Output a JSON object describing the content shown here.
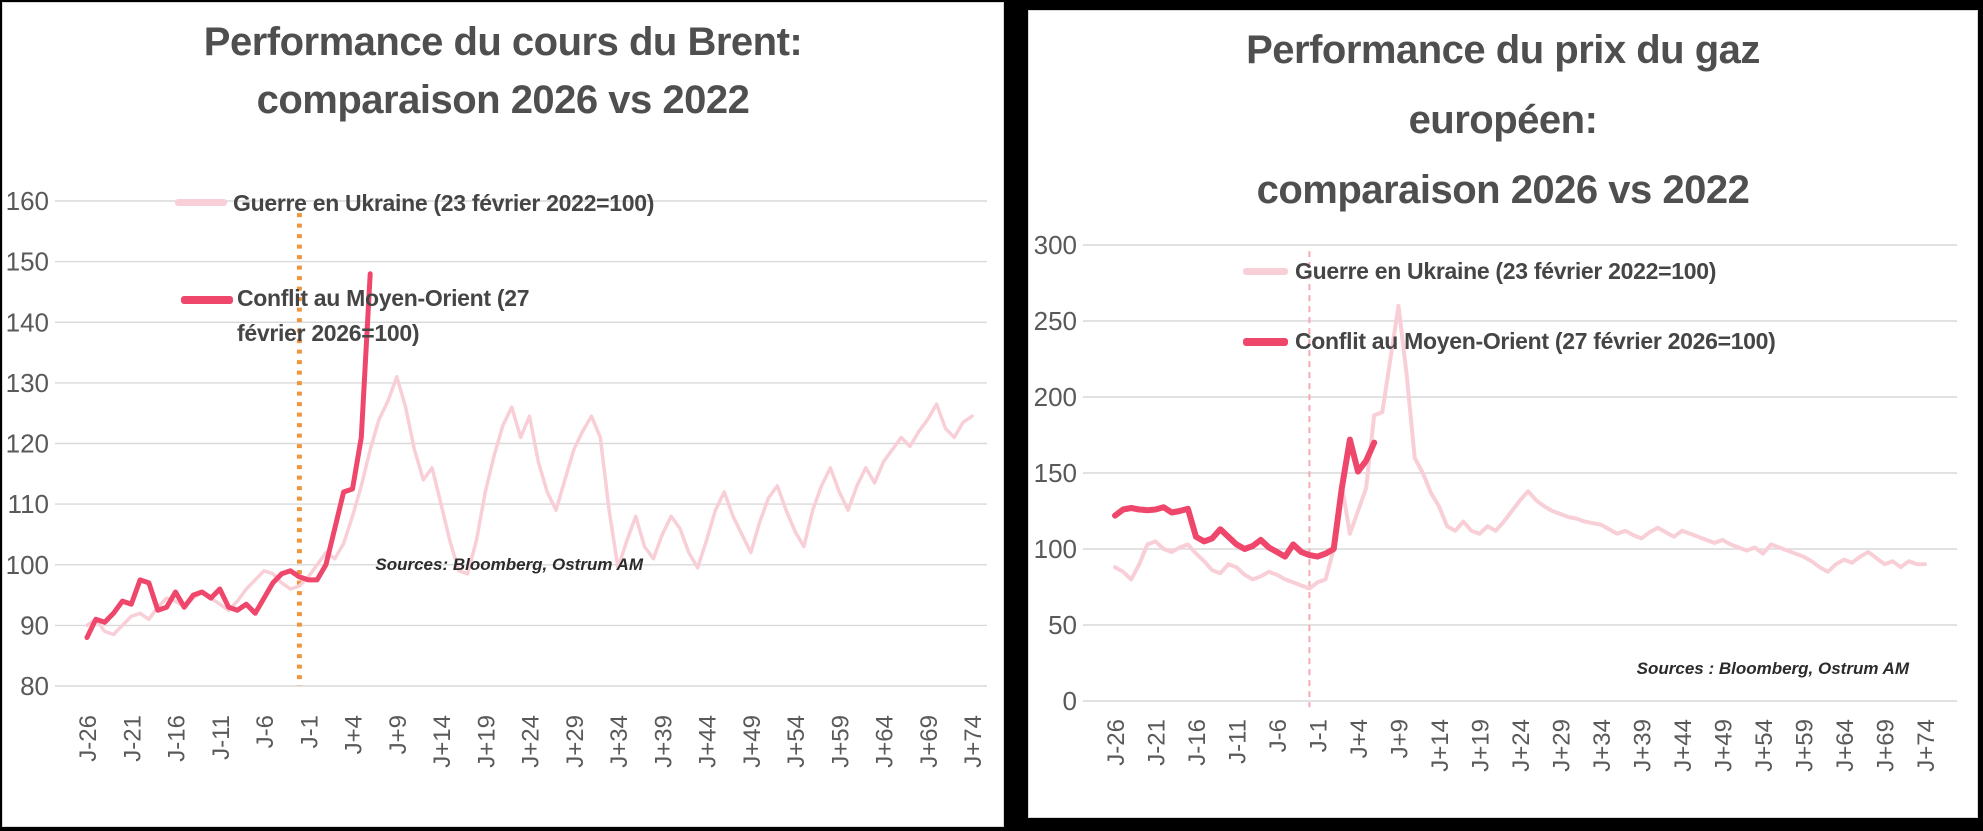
{
  "page": {
    "background": "#000000",
    "panel_background": "#ffffff",
    "grid_color": "#d9d9d9",
    "axis_text_color": "#595959",
    "title_text_color": "#4f4f4f"
  },
  "chart_data": [
    {
      "type": "line",
      "title": "Performance du cours du Brent: comparaison 2026 vs 2022",
      "title_lines": [
        "Performance du cours du Brent:",
        "comparaison 2026 vs 2022"
      ],
      "sources": "Sources: Bloomberg, Ostrum AM",
      "xlabel": "",
      "ylabel": "",
      "ylim": [
        80,
        160
      ],
      "y_ticks": [
        80,
        90,
        100,
        110,
        120,
        130,
        140,
        150,
        160
      ],
      "x_start": -26,
      "x_tick_step": 5,
      "x_tick_labels": [
        "J-26",
        "J-21",
        "J-16",
        "J-11",
        "J-6",
        "J-1",
        "J+4",
        "J+9",
        "J+14",
        "J+19",
        "J+24",
        "J+29",
        "J+34",
        "J+39",
        "J+44",
        "J+49",
        "J+54",
        "J+59",
        "J+64",
        "J+69",
        "J+74"
      ],
      "grid": true,
      "legend_position": "inside-top-left",
      "event_line": {
        "x": -2,
        "color": "#f0953f",
        "dash": "4 6.5",
        "width": 5,
        "y_from": 158,
        "y_to": 80
      },
      "series": [
        {
          "id": "guerre-ukraine-2022",
          "name": "Guerre en Ukraine (23 février 2022=100)",
          "color": "#f9cfd7",
          "width": 3.5,
          "values": [
            90,
            91,
            89,
            88.5,
            90,
            91.5,
            92,
            91,
            93,
            94.5,
            94,
            93,
            94.5,
            95.5,
            94.5,
            93.5,
            92.5,
            94,
            96,
            97.5,
            99,
            98.5,
            97,
            96,
            96.5,
            98,
            100,
            102,
            101,
            103.5,
            108,
            113,
            119,
            124,
            127,
            131,
            126,
            119,
            114,
            116,
            110,
            104,
            99,
            98.5,
            104,
            112,
            118,
            123,
            126,
            121,
            124.5,
            117,
            112,
            109,
            114,
            119,
            122,
            124.5,
            121,
            109,
            99.5,
            104,
            108,
            103,
            101,
            105,
            108,
            106,
            102,
            99.5,
            104,
            109,
            112,
            108,
            105,
            102,
            107,
            111,
            113,
            109,
            105.5,
            103,
            109,
            113,
            116,
            112,
            109,
            113,
            116,
            113.5,
            117,
            119,
            121,
            119.5,
            122,
            124,
            126.5,
            122.5,
            121,
            123.5,
            124.5
          ]
        },
        {
          "id": "conflit-moyen-orient-2026",
          "name": "Conflit au Moyen-Orient (27 février 2026=100)",
          "color": "#ef476b",
          "width": 5,
          "values": [
            88,
            91,
            90.5,
            92,
            94,
            93.5,
            97.5,
            97,
            92.5,
            93,
            95.5,
            93,
            95,
            95.5,
            94.5,
            96,
            93,
            92.5,
            93.5,
            92,
            94.5,
            97,
            98.5,
            99,
            98,
            97.5,
            97.5,
            100,
            106,
            112,
            112.5,
            121,
            148
          ]
        }
      ]
    },
    {
      "type": "line",
      "title": "Performance du prix du gaz européen: comparaison 2026 vs 2022",
      "title_lines": [
        "Performance du prix du gaz",
        "européen:",
        "comparaison 2026 vs 2022"
      ],
      "sources": "Sources : Bloomberg, Ostrum AM",
      "xlabel": "",
      "ylabel": "",
      "ylim": [
        0,
        300
      ],
      "y_ticks": [
        0,
        50,
        100,
        150,
        200,
        250,
        300
      ],
      "x_start": -26,
      "x_tick_step": 5,
      "x_tick_labels": [
        "J-26",
        "J-21",
        "J-16",
        "J-11",
        "J-6",
        "J-1",
        "J+4",
        "J+9",
        "J+14",
        "J+19",
        "J+24",
        "J+29",
        "J+34",
        "J+39",
        "J+44",
        "J+49",
        "J+54",
        "J+59",
        "J+64",
        "J+69",
        "J+74"
      ],
      "grid": true,
      "legend_position": "inside-top",
      "event_line": {
        "x": -2,
        "color": "#f6aab4",
        "dash": "6 5",
        "width": 2,
        "y_from": 296,
        "y_to": -4
      },
      "series": [
        {
          "id": "guerre-ukraine-2022",
          "name": "Guerre en Ukraine (23 février 2022=100)",
          "color": "#f9cfd7",
          "width": 4,
          "values": [
            88,
            85,
            80,
            90,
            103,
            105,
            100,
            98,
            101,
            103,
            97,
            92,
            86,
            84,
            90,
            88,
            83,
            80,
            82,
            85,
            83,
            80,
            78,
            76,
            74,
            78,
            80,
            100,
            142,
            110,
            125,
            140,
            188,
            190,
            225,
            260,
            215,
            160,
            150,
            137,
            128,
            115,
            112,
            118,
            112,
            110,
            115,
            112,
            118,
            125,
            132,
            138,
            132,
            128,
            125,
            123,
            121,
            120,
            118,
            117,
            116,
            113,
            110,
            112,
            109,
            107,
            111,
            114,
            111,
            108,
            112,
            110,
            108,
            106,
            104,
            106,
            103,
            101,
            99,
            101,
            97,
            103,
            101,
            99,
            97,
            95,
            92,
            88,
            85,
            90,
            93,
            91,
            95,
            98,
            94,
            90,
            92,
            88,
            92,
            90,
            90
          ]
        },
        {
          "id": "conflit-moyen-orient-2026",
          "name": "Conflit au Moyen-Orient (27 février 2026=100)",
          "color": "#ef476b",
          "width": 6,
          "values": [
            122,
            126,
            127,
            126,
            125.5,
            126,
            127.5,
            124,
            125,
            126.5,
            108,
            105,
            107,
            113,
            108,
            103,
            100,
            102,
            106,
            101,
            98,
            95,
            103,
            98,
            96,
            95,
            97,
            100,
            140,
            172,
            151,
            158,
            170
          ]
        }
      ]
    }
  ]
}
